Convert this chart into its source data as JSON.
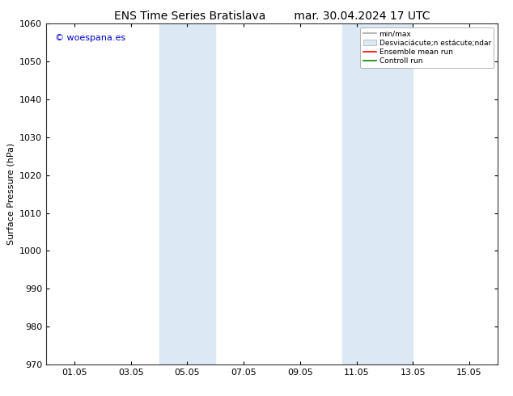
{
  "title_left": "ENS Time Series Bratislava",
  "title_right": "mar. 30.04.2024 17 UTC",
  "ylabel": "Surface Pressure (hPa)",
  "ylim": [
    970,
    1060
  ],
  "yticks": [
    970,
    980,
    990,
    1000,
    1010,
    1020,
    1030,
    1040,
    1050,
    1060
  ],
  "xtick_labels": [
    "01.05",
    "03.05",
    "05.05",
    "07.05",
    "09.05",
    "11.05",
    "13.05",
    "15.05"
  ],
  "xtick_positions": [
    1,
    3,
    5,
    7,
    9,
    11,
    13,
    15
  ],
  "xlim": [
    0,
    16
  ],
  "shaded_bands": [
    {
      "x_start": 4.0,
      "x_end": 6.0
    },
    {
      "x_start": 10.5,
      "x_end": 12.0
    },
    {
      "x_start": 12.0,
      "x_end": 13.0
    }
  ],
  "watermark_text": "© woespana.es",
  "watermark_color": "#0000cc",
  "background_color": "#ffffff",
  "shaded_color": "#dce9f5",
  "legend_line1_label": "min/max",
  "legend_line1_color": "#aaaaaa",
  "legend_band_label": "Desviaciácute;n estácute;ndar",
  "legend_line3_label": "Ensemble mean run",
  "legend_line3_color": "#ff0000",
  "legend_line4_label": "Controll run",
  "legend_line4_color": "#008800",
  "tick_label_fontsize": 8,
  "title_fontsize": 10,
  "ylabel_fontsize": 8
}
